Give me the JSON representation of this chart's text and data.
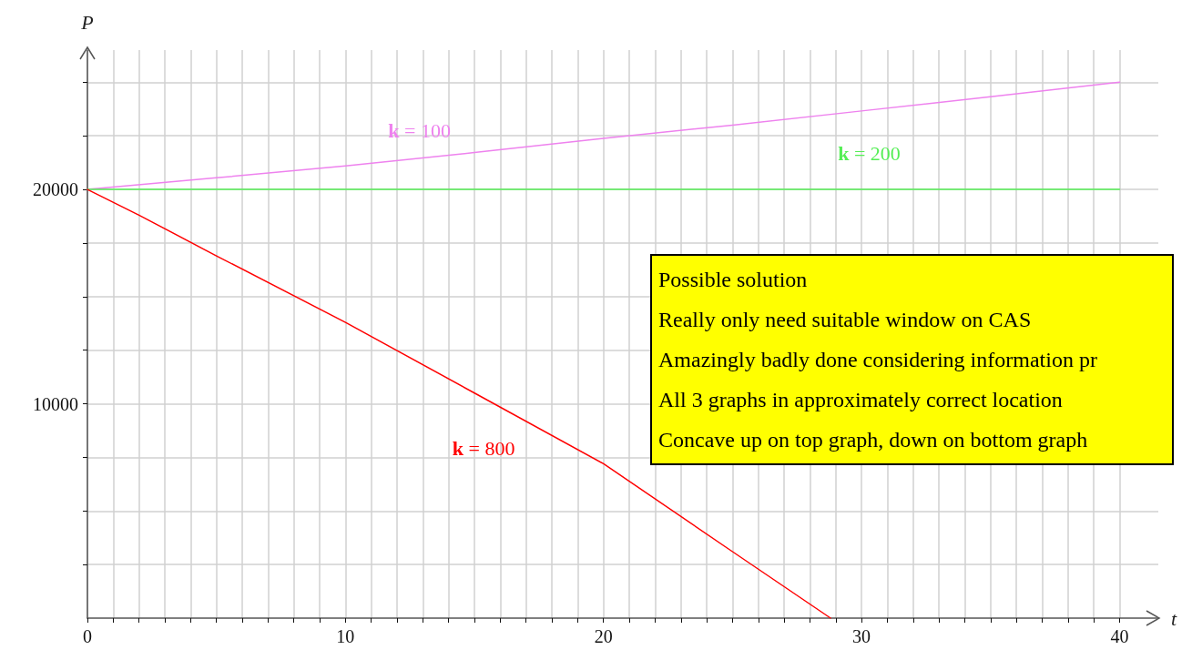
{
  "chart_data": {
    "type": "line",
    "xlabel": "t",
    "ylabel": "P",
    "xlim": [
      0,
      41.5
    ],
    "ylim": [
      0,
      26500
    ],
    "xticks": [
      0,
      {
        "value": 1,
        "label": null
      },
      {
        "value": 2,
        "label": null
      },
      {
        "value": 3,
        "label": null
      },
      {
        "value": 4,
        "label": null
      },
      {
        "value": 5,
        "label": null
      },
      {
        "value": 6,
        "label": null
      },
      {
        "value": 7,
        "label": null
      },
      {
        "value": 8,
        "label": null
      },
      {
        "value": 9,
        "label": null
      },
      10,
      {
        "value": 11,
        "label": null
      },
      {
        "value": 12,
        "label": null
      },
      {
        "value": 13,
        "label": null
      },
      {
        "value": 14,
        "label": null
      },
      {
        "value": 15,
        "label": null
      },
      {
        "value": 16,
        "label": null
      },
      {
        "value": 17,
        "label": null
      },
      {
        "value": 18,
        "label": null
      },
      {
        "value": 19,
        "label": null
      },
      20,
      {
        "value": 21,
        "label": null
      },
      {
        "value": 22,
        "label": null
      },
      {
        "value": 23,
        "label": null
      },
      {
        "value": 24,
        "label": null
      },
      {
        "value": 25,
        "label": null
      },
      {
        "value": 26,
        "label": null
      },
      {
        "value": 27,
        "label": null
      },
      {
        "value": 28,
        "label": null
      },
      {
        "value": 29,
        "label": null
      },
      30,
      {
        "value": 31,
        "label": null
      },
      {
        "value": 32,
        "label": null
      },
      {
        "value": 33,
        "label": null
      },
      {
        "value": 34,
        "label": null
      },
      {
        "value": 35,
        "label": null
      },
      {
        "value": 36,
        "label": null
      },
      {
        "value": 37,
        "label": null
      },
      {
        "value": 38,
        "label": null
      },
      {
        "value": 39,
        "label": null
      },
      40
    ],
    "yticks": [
      {
        "value": 2500,
        "label": null
      },
      {
        "value": 5000,
        "label": null
      },
      {
        "value": 7500,
        "label": null
      },
      10000,
      {
        "value": 12500,
        "label": null
      },
      {
        "value": 15000,
        "label": null
      },
      {
        "value": 17500,
        "label": null
      },
      20000,
      {
        "value": 22500,
        "label": null
      },
      {
        "value": 25000,
        "label": null
      }
    ],
    "grid": true,
    "marker": "none",
    "series": [
      {
        "name": "k = 100",
        "color": "#ee82ee",
        "x": [
          0,
          5,
          10,
          15,
          20,
          25,
          30,
          35,
          40
        ],
        "values": [
          20000,
          20540,
          21100,
          21720,
          22380,
          23000,
          23660,
          24320,
          25000
        ]
      },
      {
        "name": "k = 200",
        "color": "#55ee55",
        "x": [
          0,
          40
        ],
        "values": [
          20000,
          20000
        ]
      },
      {
        "name": "k = 800",
        "color": "#ff0000",
        "x": [
          0,
          2,
          5,
          10,
          15,
          20,
          25,
          28.8
        ],
        "values": [
          20000,
          18800,
          16900,
          13800,
          10500,
          7200,
          3100,
          0
        ]
      }
    ],
    "annotations": [
      "Possible solution",
      "Really only need suitable window on CAS",
      "Amazingly badly done considering information pr",
      "All 3 graphs in approximately correct location",
      "Concave up on top graph, down on bottom graph"
    ]
  }
}
